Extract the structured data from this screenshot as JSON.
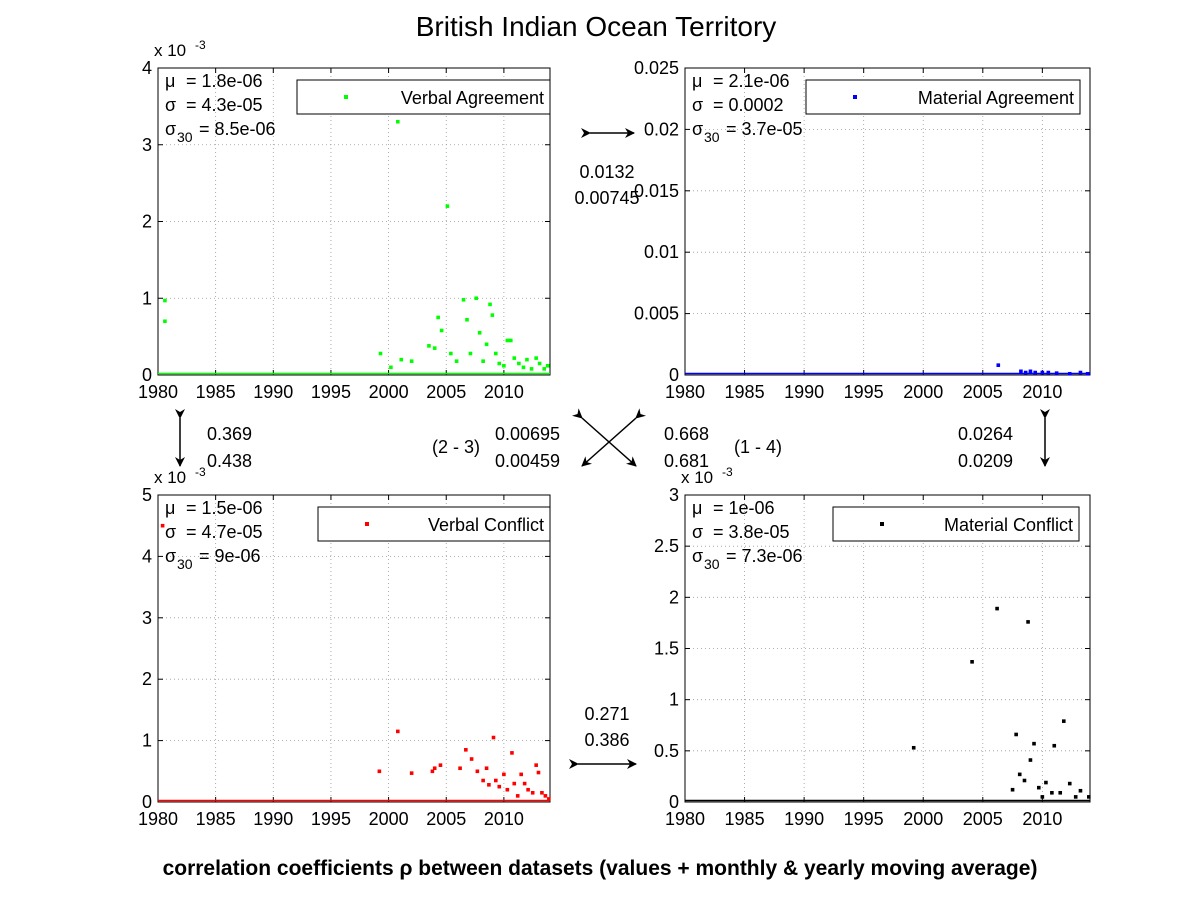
{
  "title": "British Indian Ocean Territory",
  "footer": "correlation coefficients ρ between datasets (values + monthly & yearly moving average)",
  "correlations": {
    "top_pair": [
      "0.0132",
      "0.00745"
    ],
    "left_pair": [
      "0.369",
      "0.438"
    ],
    "right_pair": [
      "0.0264",
      "0.0209"
    ],
    "bottom_pair": [
      "0.271",
      "0.386"
    ],
    "diag_left_label": "(2 - 3)",
    "diag_left": [
      "0.00695",
      "0.00459"
    ],
    "diag_right_label": "(1 - 4)",
    "diag_right": [
      "0.668",
      "0.681"
    ]
  },
  "chart_data": [
    {
      "type": "scatter",
      "legend": "Verbal Agreement",
      "legend_position": "top-right",
      "color": "#00ff00",
      "grid": true,
      "xlim": [
        1980,
        2014
      ],
      "ylim": [
        0,
        0.004
      ],
      "exponent_label": "x 10",
      "exponent_power": "-3",
      "xticks": [
        "1980",
        "1985",
        "1990",
        "1995",
        "2000",
        "2005",
        "2010"
      ],
      "yticks": [
        "0",
        "1",
        "2",
        "3",
        "4"
      ],
      "stats": [
        {
          "symbol": "μ",
          "sub": "",
          "value": "= 1.8e-06"
        },
        {
          "symbol": "σ",
          "sub": "",
          "value": "= 4.3e-05"
        },
        {
          "symbol": "σ",
          "sub": "30",
          "value": "= 8.5e-06"
        }
      ],
      "points": [
        [
          1980.6,
          0.00097
        ],
        [
          1980.6,
          0.0007
        ],
        [
          1999.3,
          0.00028
        ],
        [
          2000.2,
          0.0001
        ],
        [
          2000.8,
          0.0033
        ],
        [
          2001.1,
          0.0002
        ],
        [
          2002,
          0.00018
        ],
        [
          2003.5,
          0.00038
        ],
        [
          2004,
          0.00035
        ],
        [
          2004.3,
          0.00075
        ],
        [
          2004.6,
          0.00058
        ],
        [
          2005.1,
          0.0022
        ],
        [
          2005.4,
          0.00028
        ],
        [
          2005.9,
          0.00018
        ],
        [
          2006.5,
          0.00098
        ],
        [
          2006.8,
          0.00072
        ],
        [
          2007.1,
          0.00028
        ],
        [
          2007.6,
          0.001
        ],
        [
          2007.9,
          0.00055
        ],
        [
          2008.2,
          0.00018
        ],
        [
          2008.5,
          0.0004
        ],
        [
          2008.8,
          0.00092
        ],
        [
          2009,
          0.00078
        ],
        [
          2009.3,
          0.00028
        ],
        [
          2009.6,
          0.00015
        ],
        [
          2010,
          0.00012
        ],
        [
          2010.3,
          0.00045
        ],
        [
          2010.6,
          0.00045
        ],
        [
          2010.9,
          0.00022
        ],
        [
          2011.3,
          0.00015
        ],
        [
          2011.7,
          0.0001
        ],
        [
          2012,
          0.0002
        ],
        [
          2012.4,
          8e-05
        ],
        [
          2012.8,
          0.00022
        ],
        [
          2013.1,
          0.00015
        ],
        [
          2013.5,
          8e-05
        ],
        [
          2013.8,
          0.00012
        ]
      ]
    },
    {
      "type": "scatter",
      "legend": "Material Agreement",
      "legend_position": "top-right",
      "color": "#0000ff",
      "grid": true,
      "xlim": [
        1980,
        2014
      ],
      "ylim": [
        0,
        0.025
      ],
      "exponent_label": "",
      "exponent_power": "",
      "xticks": [
        "1980",
        "1985",
        "1990",
        "1995",
        "2000",
        "2005",
        "2010"
      ],
      "yticks": [
        "0",
        "0.005",
        "0.01",
        "0.015",
        "0.02",
        "0.025"
      ],
      "stats": [
        {
          "symbol": "μ",
          "sub": "",
          "value": "= 2.1e-06"
        },
        {
          "symbol": "σ",
          "sub": "",
          "value": "= 0.0002"
        },
        {
          "symbol": "σ",
          "sub": "30",
          "value": "= 3.7e-05"
        }
      ],
      "points": [
        [
          2006.3,
          0.0008
        ],
        [
          2008.2,
          0.0003
        ],
        [
          2008.6,
          0.0002
        ],
        [
          2009,
          0.0003
        ],
        [
          2009.4,
          0.0002
        ],
        [
          2010,
          0.0002
        ],
        [
          2010.5,
          0.0002
        ],
        [
          2011.2,
          0.00015
        ],
        [
          2012.3,
          0.0001
        ],
        [
          2013.2,
          0.0002
        ],
        [
          2013.8,
          0.0001
        ]
      ]
    },
    {
      "type": "scatter",
      "legend": "Verbal Conflict",
      "legend_position": "top-right",
      "color": "#ff0000",
      "grid": true,
      "xlim": [
        1980,
        2014
      ],
      "ylim": [
        0,
        0.005
      ],
      "exponent_label": "x 10",
      "exponent_power": "-3",
      "xticks": [
        "1980",
        "1985",
        "1990",
        "1995",
        "2000",
        "2005",
        "2010"
      ],
      "yticks": [
        "0",
        "1",
        "2",
        "3",
        "4",
        "5"
      ],
      "stats": [
        {
          "symbol": "μ",
          "sub": "",
          "value": "= 1.5e-06"
        },
        {
          "symbol": "σ",
          "sub": "",
          "value": "= 4.7e-05"
        },
        {
          "symbol": "σ",
          "sub": "30",
          "value": "= 9e-06"
        }
      ],
      "points": [
        [
          1980.4,
          0.0045
        ],
        [
          1999.2,
          0.0005
        ],
        [
          2000.8,
          0.00115
        ],
        [
          2002,
          0.00047
        ],
        [
          2003.8,
          0.0005
        ],
        [
          2004,
          0.00055
        ],
        [
          2004.5,
          0.0006
        ],
        [
          2006.2,
          0.00055
        ],
        [
          2006.7,
          0.00085
        ],
        [
          2007.2,
          0.0007
        ],
        [
          2007.7,
          0.0005
        ],
        [
          2008.2,
          0.00035
        ],
        [
          2008.5,
          0.00055
        ],
        [
          2008.7,
          0.00028
        ],
        [
          2009.1,
          0.00105
        ],
        [
          2009.3,
          0.00035
        ],
        [
          2009.6,
          0.00025
        ],
        [
          2010,
          0.00045
        ],
        [
          2010.3,
          0.0002
        ],
        [
          2010.7,
          0.0008
        ],
        [
          2010.9,
          0.0003
        ],
        [
          2011.2,
          0.0001
        ],
        [
          2011.5,
          0.00045
        ],
        [
          2011.8,
          0.0003
        ],
        [
          2012.1,
          0.0002
        ],
        [
          2012.5,
          0.00015
        ],
        [
          2012.8,
          0.0006
        ],
        [
          2013,
          0.00048
        ],
        [
          2013.3,
          0.00015
        ],
        [
          2013.6,
          0.0001
        ],
        [
          2013.9,
          5e-05
        ]
      ]
    },
    {
      "type": "scatter",
      "legend": "Material Conflict",
      "legend_position": "top-right",
      "color": "#000000",
      "grid": true,
      "xlim": [
        1980,
        2014
      ],
      "ylim": [
        0,
        0.003
      ],
      "exponent_label": "x 10",
      "exponent_power": "-3",
      "xticks": [
        "1980",
        "1985",
        "1990",
        "1995",
        "2000",
        "2005",
        "2010"
      ],
      "yticks": [
        "0",
        "0.5",
        "1",
        "1.5",
        "2",
        "2.5",
        "3"
      ],
      "stats": [
        {
          "symbol": "μ",
          "sub": "",
          "value": "= 1e-06"
        },
        {
          "symbol": "σ",
          "sub": "",
          "value": "= 3.8e-05"
        },
        {
          "symbol": "σ",
          "sub": "30",
          "value": "= 7.3e-06"
        }
      ],
      "points": [
        [
          1999.2,
          0.00053
        ],
        [
          2004.1,
          0.00137
        ],
        [
          2006.2,
          0.00189
        ],
        [
          2007.5,
          0.00012
        ],
        [
          2007.8,
          0.00066
        ],
        [
          2008.1,
          0.00027
        ],
        [
          2008.5,
          0.00021
        ],
        [
          2008.8,
          0.00176
        ],
        [
          2009,
          0.00041
        ],
        [
          2009.3,
          0.00057
        ],
        [
          2009.7,
          0.00014
        ],
        [
          2010,
          5e-05
        ],
        [
          2010.3,
          0.00019
        ],
        [
          2010.8,
          9e-05
        ],
        [
          2011,
          0.00055
        ],
        [
          2011.5,
          9e-05
        ],
        [
          2011.8,
          0.00079
        ],
        [
          2012.3,
          0.00018
        ],
        [
          2012.8,
          5e-05
        ],
        [
          2013.2,
          0.00011
        ],
        [
          2013.9,
          5e-05
        ]
      ]
    }
  ]
}
